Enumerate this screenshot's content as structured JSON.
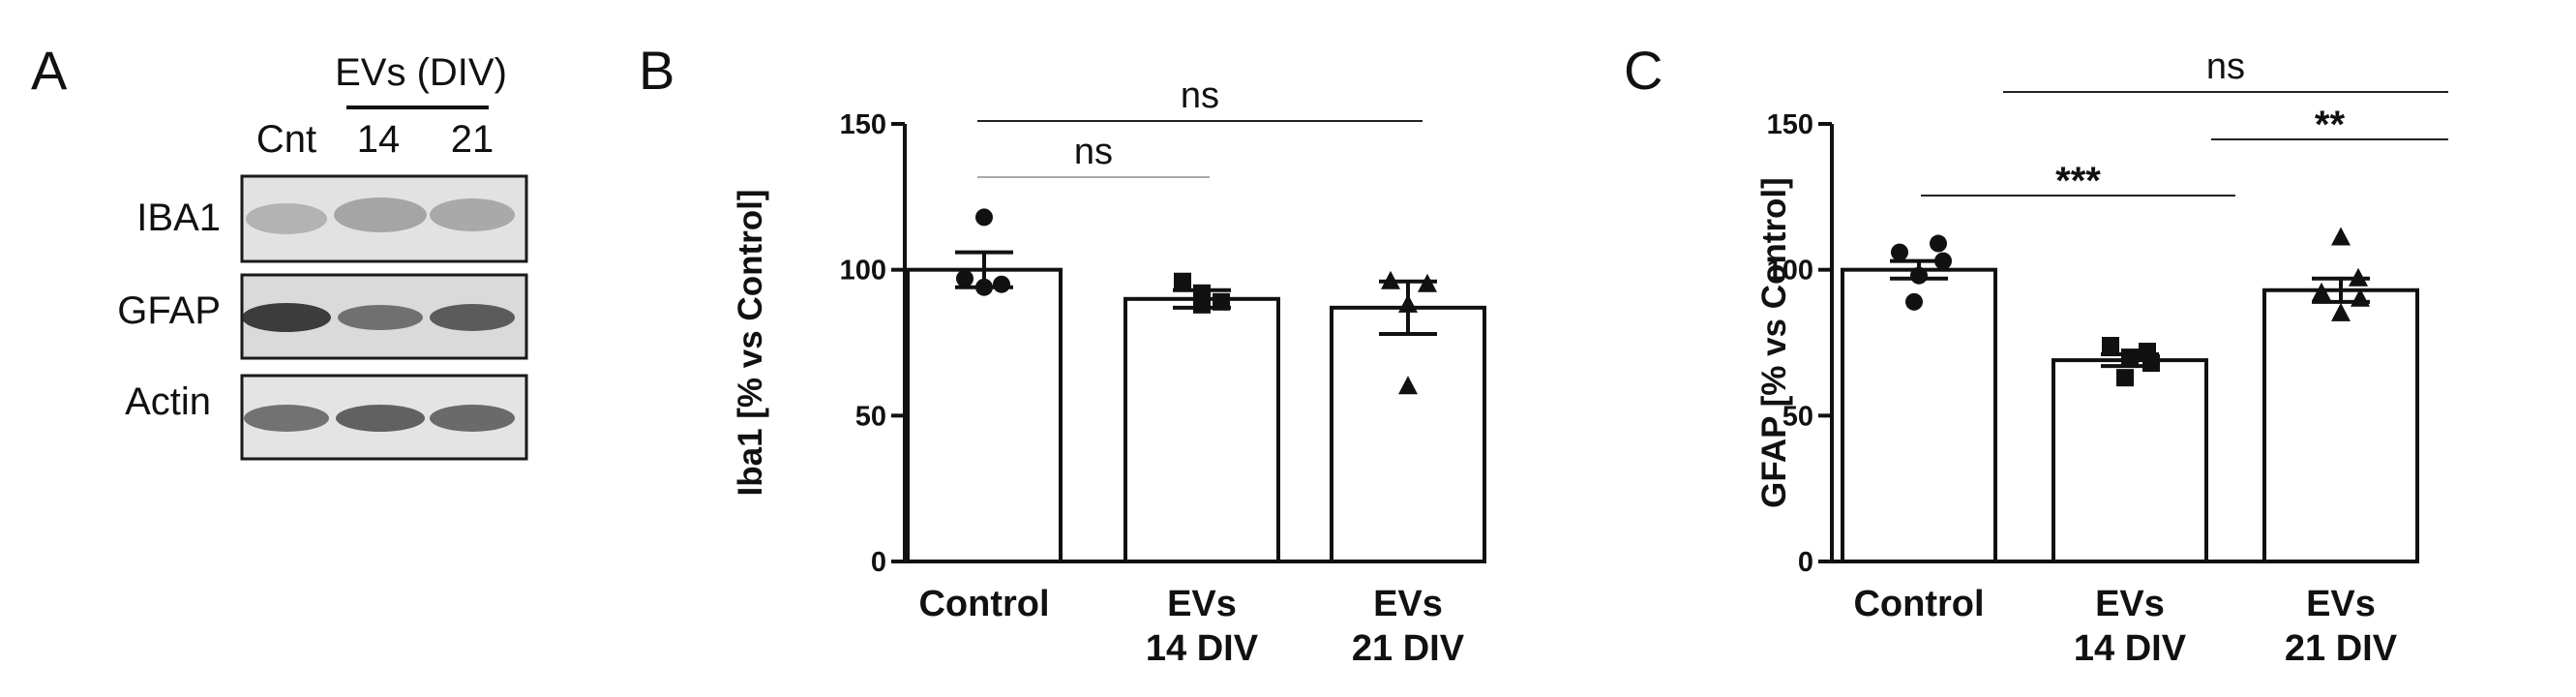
{
  "panel_a": {
    "letter": "A",
    "header": "EVs (DIV)",
    "lanes": [
      "Cnt",
      "14",
      "21"
    ],
    "rows": [
      "IBA1",
      "GFAP",
      "Actin"
    ]
  },
  "chart_data": [
    {
      "type": "bar",
      "panel": "B",
      "ylabel": "Iba1 [% vs Control]",
      "ylim": [
        0,
        150
      ],
      "yticks": [
        "0",
        "50",
        "100",
        "150"
      ],
      "categories": [
        [
          "Control"
        ],
        [
          "EVs",
          "14 DIV"
        ],
        [
          "EVs",
          "21 DIV"
        ]
      ],
      "values": [
        100,
        90,
        87
      ],
      "errors": [
        6,
        3,
        9
      ],
      "markers": [
        "circle",
        "square",
        "triangle"
      ],
      "points": [
        [
          118,
          97,
          95,
          94
        ],
        [
          96,
          92,
          89,
          88
        ],
        [
          96,
          95,
          88,
          60
        ]
      ],
      "significance": [
        {
          "from": 0,
          "to": 1,
          "label": "ns",
          "color": "#aaaaaa"
        },
        {
          "from": 0,
          "to": 2,
          "label": "ns",
          "color": "#222222"
        }
      ]
    },
    {
      "type": "bar",
      "panel": "C",
      "ylabel": "GFAP [% vs Control]",
      "ylim": [
        0,
        150
      ],
      "yticks": [
        "0",
        "50",
        "100",
        "150"
      ],
      "categories": [
        [
          "Control"
        ],
        [
          "EVs",
          "14 DIV"
        ],
        [
          "EVs",
          "21 DIV"
        ]
      ],
      "values": [
        100,
        69,
        93
      ],
      "errors": [
        3,
        2,
        4
      ],
      "markers": [
        "circle",
        "square",
        "triangle"
      ],
      "points": [
        [
          109,
          106,
          103,
          98,
          89
        ],
        [
          74,
          72,
          70,
          68,
          63
        ],
        [
          111,
          97,
          92,
          90,
          85
        ]
      ],
      "significance": [
        {
          "from": 0,
          "to": 1,
          "label": "***",
          "color": "#222222"
        },
        {
          "from": 1,
          "to": 2,
          "label": "**",
          "color": "#222222"
        },
        {
          "from": 0,
          "to": 2,
          "label": "ns",
          "color": "#222222"
        }
      ]
    }
  ]
}
